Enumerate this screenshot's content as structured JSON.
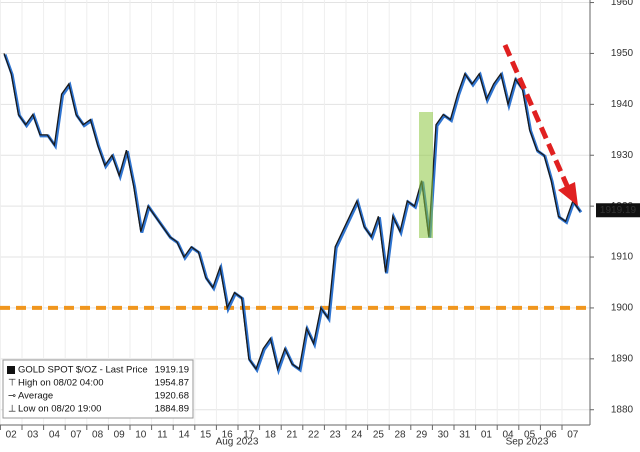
{
  "chart_data": {
    "type": "line",
    "categories": [
      "02",
      null,
      null,
      "03",
      null,
      null,
      "04",
      null,
      null,
      "07",
      null,
      null,
      "08",
      null,
      null,
      "09",
      null,
      null,
      "10",
      null,
      null,
      "11",
      null,
      null,
      "14",
      null,
      null,
      "15",
      null,
      null,
      "16",
      null,
      null,
      "17",
      null,
      null,
      "18",
      null,
      null,
      "21",
      null,
      null,
      "22",
      null,
      null,
      "23",
      null,
      null,
      "24",
      null,
      null,
      "25",
      null,
      null,
      "28",
      null,
      null,
      "29",
      null,
      null,
      "30",
      null,
      null,
      "31",
      null,
      null,
      "01",
      null,
      null,
      "04",
      null,
      null,
      "05",
      null,
      null,
      "06",
      null,
      null,
      "07",
      null,
      null
    ],
    "months": [
      "Aug 2023",
      "Sep 2023"
    ],
    "series": [
      {
        "name": "GOLD SPOT $/OZ - Last Price",
        "color": "#1a1a1a",
        "values": [
          1950,
          1946,
          1938,
          1936,
          1938,
          1934,
          1934,
          1932,
          1942,
          1944,
          1938,
          1936,
          1937,
          1932,
          1928,
          1930,
          1926,
          1931,
          1924,
          1915,
          1920,
          1918,
          1916,
          1914,
          1913,
          1910,
          1912,
          1911,
          1906,
          1904,
          1908,
          1900,
          1903,
          1902,
          1890,
          1888,
          1892,
          1894,
          1888,
          1892,
          1889,
          1888,
          1896,
          1893,
          1900,
          1898,
          1912,
          1915,
          1918,
          1921,
          1916,
          1914,
          1918,
          1907,
          1918,
          1915,
          1921,
          1920,
          1925,
          1914,
          1936,
          1938,
          1937,
          1942,
          1946,
          1944,
          1946,
          1941,
          1944,
          1946,
          1940,
          1945,
          1943,
          1935,
          1931,
          1930,
          1925,
          1918,
          1917,
          1921,
          1919
        ]
      }
    ],
    "last_price": 1919.19,
    "stats": [
      {
        "label": "High on 08/02 04:00",
        "value": 1954.87
      },
      {
        "label": "Average",
        "value": 1920.68
      },
      {
        "label": "Low on 08/20 19:00",
        "value": 1884.89
      }
    ],
    "hline": 1900,
    "hline_color": "#f0961e",
    "ylim": [
      1877,
      1960.5
    ],
    "yticks": [
      1880,
      1890,
      1900,
      1910,
      1920,
      1930,
      1940,
      1950,
      1960
    ],
    "grid": true
  }
}
